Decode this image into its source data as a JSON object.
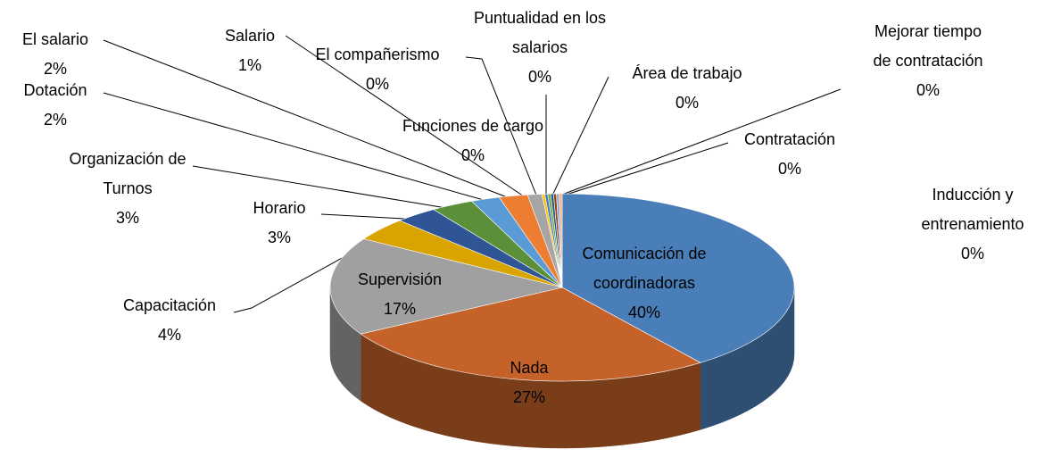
{
  "chart_data": {
    "type": "pie",
    "categories": [
      "Comunicación de coordinadoras",
      "Nada",
      "Supervisión",
      "Capacitación",
      "Horario",
      "Organización de Turnos",
      "Dotación",
      "El salario",
      "Salario",
      "El compañerismo",
      "Funciones de cargo",
      "Puntualidad en los salarios",
      "Área de trabajo",
      "Mejorar tiempo de contratación",
      "Contratación",
      "Inducción y entrenamiento"
    ],
    "values": [
      40,
      27,
      17,
      4,
      3,
      3,
      2,
      2,
      1,
      0.2,
      0.2,
      0.2,
      0.2,
      0.2,
      0.2,
      0.2
    ],
    "value_labels": [
      "40%",
      "27%",
      "17%",
      "4%",
      "3%",
      "3%",
      "2%",
      "2%",
      "1%",
      "0%",
      "0%",
      "0%",
      "0%",
      "0%",
      "0%",
      "0%"
    ],
    "colors": [
      "#4a7eb8",
      "#c5622a",
      "#a0a0a0",
      "#d9a400",
      "#2f5597",
      "#5b8f3a",
      "#5b9bd5",
      "#ed7d31",
      "#a5a5a5",
      "#ffc000",
      "#4472c4",
      "#70ad47",
      "#255e91",
      "#9e480e",
      "#8faadc",
      "#f4b183"
    ]
  }
}
